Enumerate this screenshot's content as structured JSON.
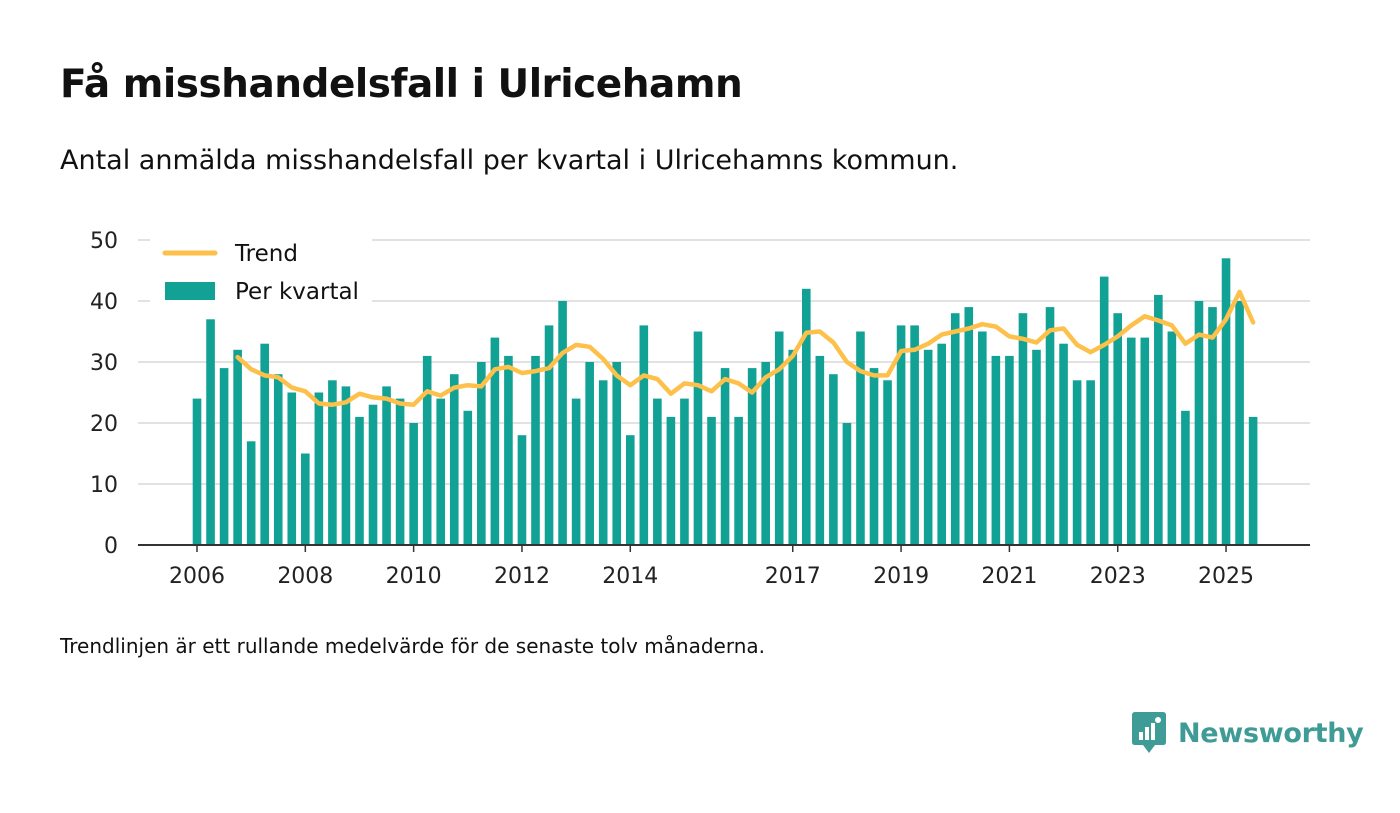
{
  "header": {
    "title": "Få misshandelsfall i Ulricehamn",
    "subtitle": "Antal anmälda misshandelsfall per kvartal i Ulricehamns kommun."
  },
  "footer": {
    "note": "Trendlinjen är ett rullande medelvärde för de senaste tolv månaderna.",
    "brand": "Newsworthy"
  },
  "colors": {
    "bar": "#12a195",
    "trend": "#fdc04a",
    "grid": "#d9d9d9",
    "axis": "#333333",
    "brand": "#3f9b95"
  },
  "chart_data": {
    "type": "bar",
    "title": "Få misshandelsfall i Ulricehamn",
    "xlabel": "",
    "ylabel": "",
    "ylim": [
      0,
      50
    ],
    "yticks": [
      0,
      10,
      20,
      30,
      40,
      50
    ],
    "grid": true,
    "legend_position": "top-left",
    "x_start": {
      "year": 2006,
      "quarter": 1
    },
    "x_tick_labels": [
      "2006",
      "2008",
      "2010",
      "2012",
      "2014",
      "2017",
      "2019",
      "2021",
      "2023",
      "2025"
    ],
    "x_tick_years": [
      2006,
      2008,
      2010,
      2012,
      2014,
      2017,
      2019,
      2021,
      2023,
      2025
    ],
    "series": [
      {
        "name": "Per kvartal",
        "kind": "bar",
        "values": [
          24,
          37,
          29,
          32,
          17,
          33,
          28,
          25,
          15,
          25,
          27,
          26,
          21,
          23,
          26,
          24,
          20,
          31,
          24,
          28,
          22,
          30,
          34,
          31,
          18,
          31,
          36,
          40,
          24,
          30,
          27,
          30,
          18,
          36,
          24,
          21,
          24,
          35,
          21,
          29,
          21,
          29,
          30,
          35,
          32,
          42,
          31,
          28,
          20,
          35,
          29,
          27,
          36,
          36,
          32,
          33,
          38,
          39,
          35,
          31,
          31,
          38,
          32,
          39,
          33,
          27,
          27,
          44,
          38,
          34,
          34,
          41,
          35,
          22,
          40,
          39,
          47,
          40,
          21
        ]
      },
      {
        "name": "Trend",
        "kind": "line",
        "start_index": 3,
        "values": [
          30.8,
          28.8,
          27.8,
          27.5,
          25.8,
          25.2,
          23.2,
          23.0,
          23.4,
          24.8,
          24.2,
          24.0,
          23.2,
          23.0,
          25.2,
          24.5,
          25.8,
          26.2,
          26.0,
          28.8,
          29.2,
          28.2,
          28.5,
          29.0,
          31.5,
          32.8,
          32.5,
          30.5,
          27.8,
          26.2,
          27.8,
          27.2,
          24.8,
          26.5,
          26.2,
          25.2,
          27.2,
          26.5,
          25.0,
          27.5,
          28.8,
          31.0,
          34.8,
          35.0,
          33.2,
          30.0,
          28.5,
          27.8,
          27.8,
          31.8,
          32.0,
          33.0,
          34.5,
          35.0,
          35.5,
          36.2,
          35.8,
          34.2,
          33.8,
          33.2,
          35.2,
          35.5,
          32.8,
          31.6,
          32.8,
          34.2,
          36.0,
          37.5,
          36.8,
          36.0,
          33.0,
          34.5,
          34.0,
          37.0,
          41.5,
          36.5
        ]
      }
    ]
  }
}
